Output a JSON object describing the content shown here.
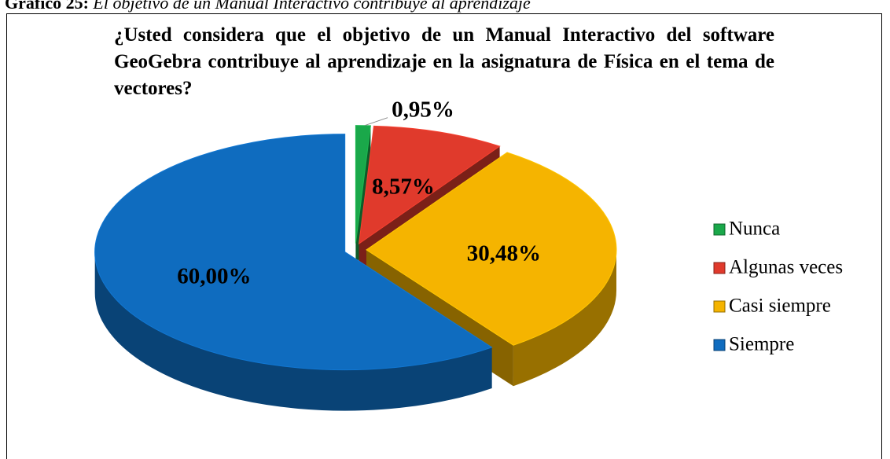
{
  "caption": "Gráfico 25:",
  "caption_text": "El objetivo de un Manual Interactivo contribuye al aprendizaje",
  "chart_data": {
    "type": "pie3d",
    "title": "¿Usted considera que el objetivo de un Manual Interactivo del software GeoGebra contribuye al aprendizaje en la asignatura de Física en el tema de vectores?",
    "categories": [
      "Nunca",
      "Algunas veces",
      "Casi siempre",
      "Siempre"
    ],
    "values": [
      0.95,
      8.57,
      30.48,
      60.0
    ],
    "value_labels": [
      "0,95%",
      "8,57%",
      "30,48%",
      "60,00%"
    ],
    "colors": [
      "#1aa84a",
      "#e03a2c",
      "#f5b400",
      "#0f6cbf"
    ],
    "legend": "right"
  }
}
